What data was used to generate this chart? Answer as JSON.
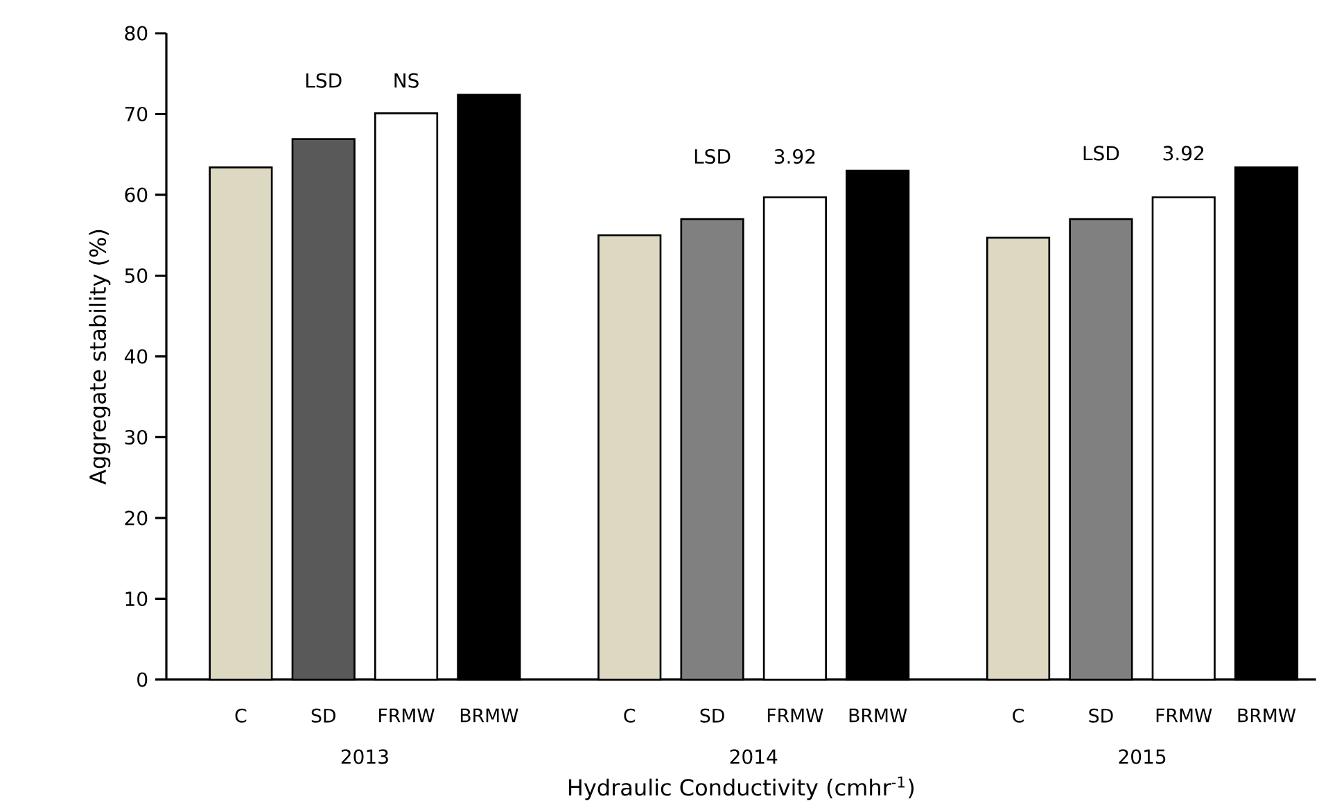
{
  "chart_data": {
    "type": "bar",
    "categories": [
      "C",
      "SD",
      "FRMW",
      "BRMW",
      "C",
      "SD",
      "FRMW",
      "BRMW",
      "C",
      "SD",
      "FRMW",
      "BRMW"
    ],
    "values": [
      63.4,
      66.9,
      70.1,
      72.4,
      55.0,
      57.0,
      59.7,
      63.0,
      54.7,
      57.0,
      59.7,
      63.4
    ],
    "colors": [
      "#ddd8c1",
      "#595959",
      "#ffffff",
      "#000000",
      "#ddd8c1",
      "#808080",
      "#ffffff",
      "#000000",
      "#ddd8c1",
      "#808080",
      "#ffffff",
      "#000000"
    ],
    "xlabel": "Hydraulic Conductivity (cmhr$^{-1}$)",
    "ylabel": "Aggregate stability (%)",
    "ylim": [
      0,
      80
    ],
    "yticks": [
      0,
      10,
      20,
      30,
      40,
      50,
      60,
      70,
      80
    ],
    "annotations": [
      "2013",
      "2014",
      "2015",
      "LSD",
      "NS",
      "LSD",
      "3.92",
      "LSD",
      "3.92"
    ]
  }
}
